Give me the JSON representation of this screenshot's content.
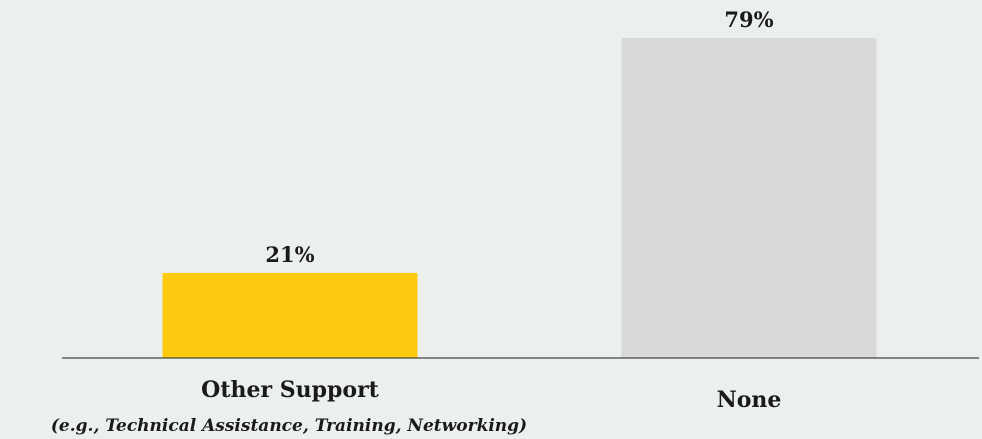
{
  "chart_data": {
    "type": "bar",
    "title": "",
    "xlabel": "",
    "ylabel": "",
    "ylim": [
      0,
      79
    ],
    "grid": false,
    "categories": [
      "Other Support",
      "None"
    ],
    "category_sublabels": [
      "(e.g., Technical Assistance, Training, Networking)",
      ""
    ],
    "values": [
      21,
      79
    ],
    "value_labels": [
      "21%",
      "79%"
    ],
    "colors": [
      "#fdca0f",
      "#d9d9d9"
    ],
    "background": "#ecf0ec",
    "axis_color": "#1a1a1a"
  }
}
